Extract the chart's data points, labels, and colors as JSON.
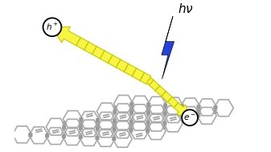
{
  "fig_width": 3.37,
  "fig_height": 1.89,
  "dpi": 100,
  "bg_color": "#ffffff",
  "hex_color": "#aaaaaa",
  "hex_linewidth": 1.2,
  "connector_color": "#999999",
  "connector_linewidth": 2.0,
  "arrow_color": "#f5f542",
  "arrow_edge_color": "#c8c800",
  "lightning_color": "#2244dd",
  "lightning_edge": "#000000"
}
